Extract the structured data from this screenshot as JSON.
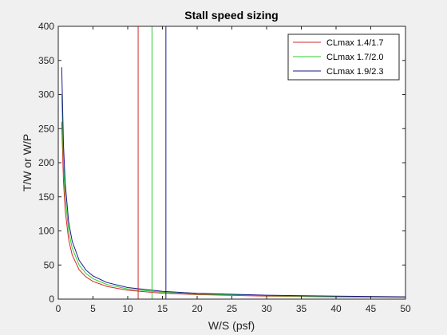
{
  "chart_data": {
    "type": "line",
    "title": "Stall speed sizing",
    "xlabel": "W/S (psf)",
    "ylabel": "T/W or W/P",
    "xlim": [
      0,
      50
    ],
    "ylim": [
      0,
      400
    ],
    "xticks": [
      0,
      5,
      10,
      15,
      20,
      25,
      30,
      35,
      40,
      45,
      50
    ],
    "yticks": [
      0,
      50,
      100,
      150,
      200,
      250,
      300,
      350,
      400
    ],
    "grid": false,
    "legend_position": "top-right",
    "series": [
      {
        "name": "CLmax 1.4/1.7",
        "color": "#d62728",
        "stall_ws": 11.5,
        "curve": {
          "x": [
            0.5,
            0.75,
            1,
            1.5,
            2,
            3,
            4,
            5,
            7,
            10,
            15,
            20,
            30,
            40,
            50
          ],
          "y": [
            260,
            173,
            130,
            87,
            65,
            43,
            32.5,
            26,
            18.6,
            13,
            8.7,
            6.5,
            4.3,
            3.3,
            2.6
          ]
        }
      },
      {
        "name": "CLmax 1.7/2.0",
        "color": "#2ecc2e",
        "stall_ws": 13.5,
        "curve": {
          "x": [
            0.5,
            0.75,
            1,
            1.5,
            2,
            3,
            4,
            5,
            7,
            10,
            15,
            20,
            30,
            40,
            50
          ],
          "y": [
            300,
            200,
            150,
            100,
            75,
            50,
            37.5,
            30,
            21.4,
            15,
            10,
            7.5,
            5,
            3.8,
            3
          ]
        }
      },
      {
        "name": "CLmax 1.9/2.3",
        "color": "#1a1a8c",
        "stall_ws": 15.5,
        "curve": {
          "x": [
            0.5,
            0.75,
            1,
            1.5,
            2,
            3,
            4,
            5,
            7,
            10,
            15,
            20,
            30,
            40,
            50
          ],
          "y": [
            340,
            227,
            170,
            113,
            85,
            57,
            42.5,
            34,
            24.3,
            17,
            11.3,
            8.5,
            5.7,
            4.3,
            3.4
          ]
        }
      }
    ]
  }
}
